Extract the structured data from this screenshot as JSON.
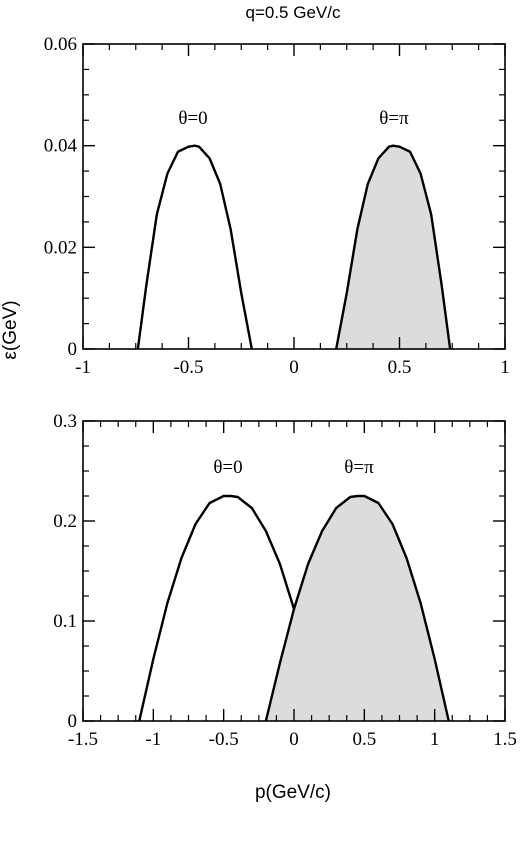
{
  "chart_data": [
    {
      "type": "line",
      "title": "q=0.5 GeV/c",
      "xlabel": "",
      "ylabel": "ε(GeV)",
      "xlim": [
        -1,
        1
      ],
      "ylim": [
        0,
        0.06
      ],
      "x_ticks": [
        "-1",
        "-0.5",
        "0",
        "0.5",
        "1"
      ],
      "y_ticks": [
        "0",
        "0.02",
        "0.04",
        "0.06"
      ],
      "grid": false,
      "annotations": [
        "θ=0",
        "θ=π"
      ],
      "series": [
        {
          "name": "θ=0",
          "x": [
            -0.74,
            -0.7,
            -0.65,
            -0.6,
            -0.55,
            -0.5,
            -0.47,
            -0.45,
            -0.4,
            -0.35,
            -0.3,
            -0.25,
            -0.2
          ],
          "y": [
            0,
            0.0125,
            0.0265,
            0.0345,
            0.0388,
            0.0398,
            0.04,
            0.0398,
            0.0375,
            0.0325,
            0.0235,
            0.011,
            0
          ],
          "filled": false
        },
        {
          "name": "θ=π",
          "x": [
            0.2,
            0.25,
            0.3,
            0.35,
            0.4,
            0.45,
            0.47,
            0.5,
            0.55,
            0.6,
            0.65,
            0.7,
            0.74
          ],
          "y": [
            0,
            0.011,
            0.0235,
            0.0325,
            0.0375,
            0.0398,
            0.04,
            0.0398,
            0.0388,
            0.0345,
            0.0265,
            0.0125,
            0
          ],
          "filled": true
        }
      ]
    },
    {
      "type": "line",
      "title": "",
      "xlabel": "p(GeV/c)",
      "ylabel": "",
      "xlim": [
        -1.5,
        1.5
      ],
      "ylim": [
        0,
        0.3
      ],
      "x_ticks": [
        "-1.5",
        "-1",
        "-0.5",
        "0",
        "0.5",
        "1",
        "1.5"
      ],
      "y_ticks": [
        "0",
        "0.1",
        "0.2",
        "0.3"
      ],
      "grid": false,
      "annotations": [
        "θ=0",
        "θ=π"
      ],
      "series": [
        {
          "name": "θ=0",
          "x": [
            -1.1,
            -1.0,
            -0.9,
            -0.8,
            -0.7,
            -0.6,
            -0.5,
            -0.45,
            -0.4,
            -0.3,
            -0.2,
            -0.1,
            0,
            0.1,
            0.2
          ],
          "y": [
            0,
            0.062,
            0.118,
            0.163,
            0.197,
            0.218,
            0.225,
            0.225,
            0.224,
            0.213,
            0.19,
            0.157,
            0.112,
            0.058,
            0
          ],
          "filled": false
        },
        {
          "name": "θ=π",
          "x": [
            -0.2,
            -0.1,
            0,
            0.1,
            0.2,
            0.3,
            0.4,
            0.45,
            0.5,
            0.6,
            0.7,
            0.8,
            0.9,
            1.0,
            1.1
          ],
          "y": [
            0,
            0.058,
            0.112,
            0.157,
            0.19,
            0.213,
            0.224,
            0.225,
            0.225,
            0.218,
            0.197,
            0.163,
            0.118,
            0.062,
            0
          ],
          "filled": true
        }
      ]
    }
  ]
}
